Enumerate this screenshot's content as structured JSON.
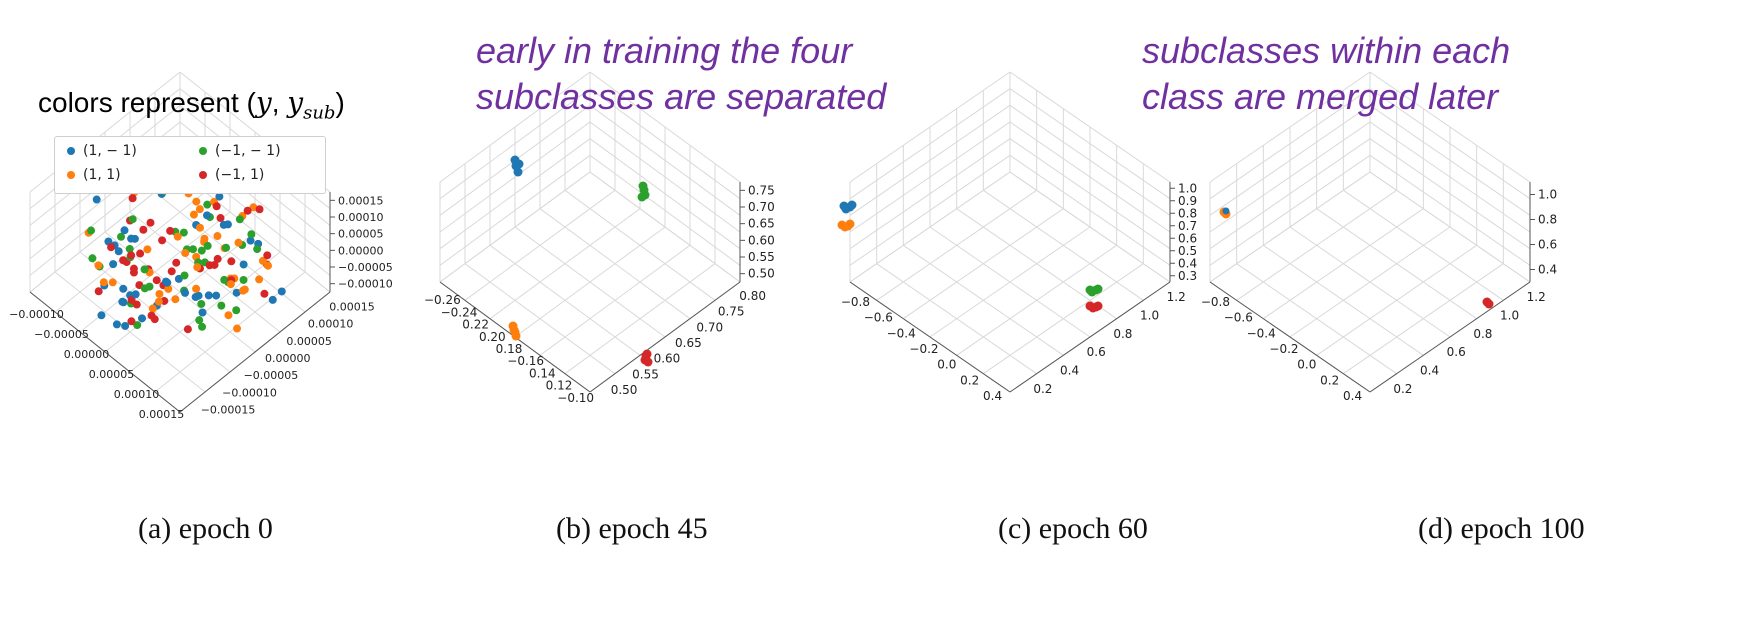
{
  "annotations": {
    "early": [
      "early in training the four",
      "subclasses are separated"
    ],
    "late": [
      "subclasses within each",
      "class are merged later"
    ]
  },
  "legend": {
    "title_prefix": "colors represent (",
    "title_y": "y",
    "title_sep": ", ",
    "title_ysub": "y",
    "title_sub": "sub",
    "title_suffix": ")",
    "entries": [
      {
        "label": "(1, − 1)",
        "color": "#1f77b4"
      },
      {
        "label": "(−1, − 1)",
        "color": "#2ca02c"
      },
      {
        "label": "(1, 1)",
        "color": "#ff7f0e"
      },
      {
        "label": "(−1, 1)",
        "color": "#d62728"
      }
    ]
  },
  "colors": {
    "class_1_neg1": "#1f77b4",
    "class_1_1": "#ff7f0e",
    "class_neg1_neg1": "#2ca02c",
    "class_neg1_1": "#d62728"
  },
  "chart_data": [
    {
      "type": "scatter",
      "caption": "(a)  epoch 0",
      "z_ticks": [
        "0.00015",
        "0.00010",
        "0.00005",
        "0.00000",
        "−0.00005",
        "−0.00010"
      ],
      "x_ticks": [
        "−0.00010",
        "−0.00005",
        "0.00000",
        "0.00005",
        "0.00010",
        "0.00015"
      ],
      "y_ticks": [
        "0.00015",
        "0.00010",
        "0.00005",
        "0.00000",
        "−0.00005",
        "−0.00010",
        "−0.00015"
      ],
      "points_per_series": 40,
      "spread": "random around origin, all four series mixed"
    },
    {
      "type": "scatter",
      "caption": "(b)  epoch 45",
      "z_ticks": [
        "0.75",
        "0.70",
        "0.65",
        "0.60",
        "0.55",
        "0.50"
      ],
      "x_ticks": [
        "−0.26",
        "−0.24",
        "0.22",
        "0.20",
        "0.18",
        "−0.16",
        "0.14",
        "0.12",
        "−0.10"
      ],
      "y_ticks": [
        "0.80",
        "0.75",
        "0.70",
        "0.65",
        "0.60",
        "0.55",
        "0.50"
      ],
      "clusters": [
        "(1, − 1) top-left",
        "(−1, − 1) top-right",
        "(1, 1) bottom-left",
        "(−1, 1) bottom-right"
      ]
    },
    {
      "type": "scatter",
      "caption": "(c)  epoch 60",
      "z_ticks": [
        "1.0",
        "0.9",
        "0.8",
        "0.7",
        "0.6",
        "0.5",
        "0.4",
        "0.3"
      ],
      "x_ticks": [
        "−0.8",
        "−0.6",
        "−0.4",
        "−0.2",
        "0.0",
        "0.2",
        "0.4"
      ],
      "y_ticks": [
        "1.2",
        "1.0",
        "0.8",
        "0.6",
        "0.4",
        "0.2"
      ],
      "clusters": [
        "(1, − 1) & (1, 1) left",
        "(−1, − 1) & (−1, 1) right"
      ]
    },
    {
      "type": "scatter",
      "caption": "(d)  epoch 100",
      "z_ticks": [
        "1.0",
        "0.8",
        "0.6",
        "0.4"
      ],
      "x_ticks": [
        "−0.8",
        "−0.6",
        "−0.4",
        "−0.2",
        "0.0",
        "0.2",
        "0.4"
      ],
      "y_ticks": [
        "1.2",
        "1.0",
        "0.8",
        "0.6",
        "0.4",
        "0.2"
      ],
      "clusters": [
        "class 1 merged left",
        "class −1 merged right"
      ]
    }
  ]
}
